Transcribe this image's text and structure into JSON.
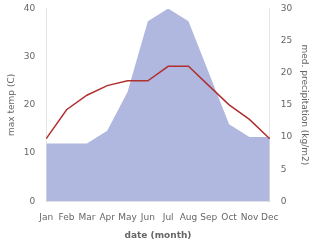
{
  "chart_data": {
    "type": "line",
    "categories": [
      "Jan",
      "Feb",
      "Mar",
      "Apr",
      "May",
      "Jun",
      "Jul",
      "Aug",
      "Sep",
      "Oct",
      "Nov",
      "Dec"
    ],
    "series": [
      {
        "type": "line",
        "color": "#b03030",
        "values": [
          13,
          19,
          22,
          24,
          25,
          25,
          28,
          28,
          24,
          20,
          17,
          13
        ]
      },
      {
        "type": "area",
        "color": "#b0b8e0",
        "axis": "y2",
        "values": [
          9,
          9,
          9,
          11,
          17,
          28,
          30,
          28,
          20,
          12,
          10,
          10
        ]
      }
    ],
    "xlabel": "date (month)",
    "ylabel": "max temp (C)",
    "y2label": "med. precipitation (kg/m2)",
    "ylim": [
      0,
      40
    ],
    "yticks": [
      0,
      10,
      20,
      30,
      40
    ],
    "y2lim": [
      0,
      30
    ],
    "y2ticks": [
      0,
      5,
      10,
      15,
      20,
      25,
      30
    ],
    "grid": false
  }
}
